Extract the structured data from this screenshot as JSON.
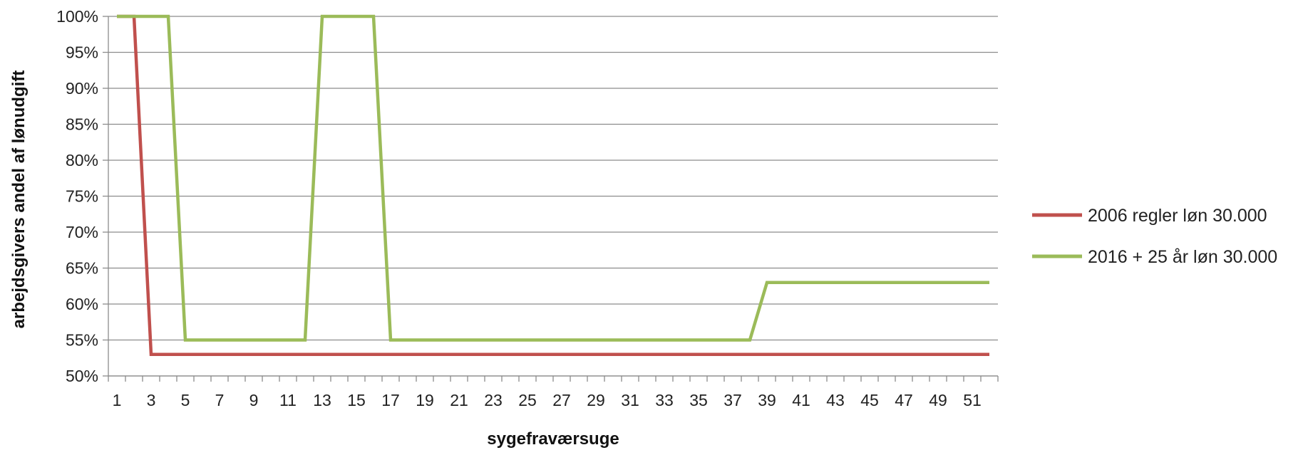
{
  "chart_data": {
    "type": "line",
    "title": "",
    "xlabel": "sygefraværsuge",
    "ylabel": "arbejdsgivers andel af  lønudgift",
    "x": [
      1,
      2,
      3,
      4,
      5,
      6,
      7,
      8,
      9,
      10,
      11,
      12,
      13,
      14,
      15,
      16,
      17,
      18,
      19,
      20,
      21,
      22,
      23,
      24,
      25,
      26,
      27,
      28,
      29,
      30,
      31,
      32,
      33,
      34,
      35,
      36,
      37,
      38,
      39,
      40,
      41,
      42,
      43,
      44,
      45,
      46,
      47,
      48,
      49,
      50,
      51,
      52
    ],
    "x_tick_labels": [
      "1",
      "3",
      "5",
      "7",
      "9",
      "11",
      "13",
      "15",
      "17",
      "19",
      "21",
      "23",
      "25",
      "27",
      "29",
      "31",
      "33",
      "35",
      "37",
      "39",
      "41",
      "43",
      "45",
      "47",
      "49",
      "51"
    ],
    "y_tick_labels": [
      "50%",
      "55%",
      "60%",
      "65%",
      "70%",
      "75%",
      "80%",
      "85%",
      "90%",
      "95%",
      "100%"
    ],
    "ylim": [
      50,
      100
    ],
    "grid": true,
    "legend_position": "right",
    "series": [
      {
        "name": "2006 regler løn 30.000",
        "color": "#c0504d",
        "values": [
          100,
          100,
          53,
          53,
          53,
          53,
          53,
          53,
          53,
          53,
          53,
          53,
          53,
          53,
          53,
          53,
          53,
          53,
          53,
          53,
          53,
          53,
          53,
          53,
          53,
          53,
          53,
          53,
          53,
          53,
          53,
          53,
          53,
          53,
          53,
          53,
          53,
          53,
          53,
          53,
          53,
          53,
          53,
          53,
          53,
          53,
          53,
          53,
          53,
          53,
          53,
          53
        ]
      },
      {
        "name": "2016 + 25 år løn 30.000",
        "color": "#9bbb59",
        "values": [
          100,
          100,
          100,
          100,
          55,
          55,
          55,
          55,
          55,
          55,
          55,
          55,
          100,
          100,
          100,
          100,
          55,
          55,
          55,
          55,
          55,
          55,
          55,
          55,
          55,
          55,
          55,
          55,
          55,
          55,
          55,
          55,
          55,
          55,
          55,
          55,
          55,
          55,
          63,
          63,
          63,
          63,
          63,
          63,
          63,
          63,
          63,
          63,
          63,
          63,
          63,
          63
        ]
      }
    ]
  }
}
